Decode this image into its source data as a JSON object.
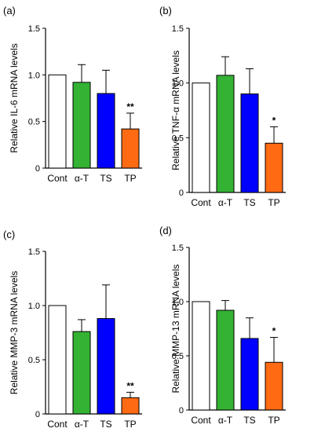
{
  "chart_data": [
    {
      "type": "bar",
      "panel": "(a)",
      "ylabel": "Relative IL-6 mRNA levels",
      "categories": [
        "Cont",
        "α-T",
        "TS",
        "TP"
      ],
      "values": [
        1.0,
        0.92,
        0.8,
        0.42
      ],
      "errors": [
        0,
        0.19,
        0.25,
        0.17
      ],
      "significance": [
        "",
        "",
        "",
        "**"
      ],
      "ylim": [
        0,
        1.5
      ],
      "yticks": [
        "0",
        "0.5",
        "1.0",
        "1.5"
      ],
      "colors": [
        "#ffffff",
        "#33b233",
        "#0000ff",
        "#ff6a13"
      ]
    },
    {
      "type": "bar",
      "panel": "(b)",
      "ylabel": "Relative TNF-α mRNA levels",
      "categories": [
        "Cont",
        "α-T",
        "TS",
        "TP"
      ],
      "values": [
        1.0,
        1.07,
        0.9,
        0.45
      ],
      "errors": [
        0,
        0.17,
        0.23,
        0.15
      ],
      "significance": [
        "",
        "",
        "",
        "*"
      ],
      "ylim": [
        0,
        1.5
      ],
      "yticks": [
        "0",
        "0.5",
        "1.0",
        "1.5"
      ],
      "colors": [
        "#ffffff",
        "#33b233",
        "#0000ff",
        "#ff6a13"
      ]
    },
    {
      "type": "bar",
      "panel": "(c)",
      "ylabel": "Relative MMP-3 mRNA levels",
      "categories": [
        "Cont",
        "α-T",
        "TS",
        "TP"
      ],
      "values": [
        1.0,
        0.76,
        0.88,
        0.15
      ],
      "errors": [
        0,
        0.11,
        0.31,
        0.05
      ],
      "significance": [
        "",
        "",
        "",
        "**"
      ],
      "ylim": [
        0,
        1.5
      ],
      "yticks": [
        "0",
        "0.5",
        "1.0",
        "1.5"
      ],
      "colors": [
        "#ffffff",
        "#33b233",
        "#0000ff",
        "#ff6a13"
      ]
    },
    {
      "type": "bar",
      "panel": "(d)",
      "ylabel": "Relative MMP-13 mRNA levels",
      "categories": [
        "Cont",
        "α-T",
        "TS",
        "TP"
      ],
      "values": [
        1.0,
        0.92,
        0.66,
        0.44
      ],
      "errors": [
        0,
        0.09,
        0.19,
        0.23
      ],
      "significance": [
        "",
        "",
        "",
        "*"
      ],
      "ylim": [
        0,
        1.5
      ],
      "yticks": [
        "0",
        "0.5",
        "1.0",
        "1.5"
      ],
      "colors": [
        "#ffffff",
        "#33b233",
        "#0000ff",
        "#ff6a13"
      ]
    }
  ]
}
